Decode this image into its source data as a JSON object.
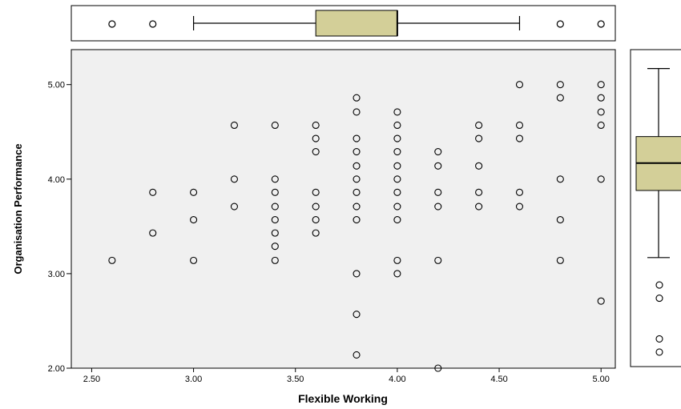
{
  "chart_data": {
    "type": "scatter",
    "title": "",
    "xlabel": "Flexible Working",
    "ylabel": "Organisation Performance",
    "xlim": [
      2.4,
      5.07
    ],
    "ylim": [
      2.0,
      5.37
    ],
    "x_ticks": [
      "2.50",
      "3.00",
      "3.50",
      "4.00",
      "4.50",
      "5.00"
    ],
    "y_ticks": [
      "2.00",
      "3.00",
      "4.00",
      "5.00"
    ],
    "grid": false,
    "plot_background": "#f0f0f0",
    "box_fill": "#d3cf98",
    "points": [
      [
        2.6,
        3.14
      ],
      [
        2.8,
        3.86
      ],
      [
        2.8,
        3.43
      ],
      [
        3.0,
        3.86
      ],
      [
        3.0,
        3.57
      ],
      [
        3.0,
        3.14
      ],
      [
        3.2,
        4.57
      ],
      [
        3.2,
        4.0
      ],
      [
        3.2,
        3.71
      ],
      [
        3.4,
        4.57
      ],
      [
        3.4,
        4.0
      ],
      [
        3.4,
        3.86
      ],
      [
        3.4,
        3.71
      ],
      [
        3.4,
        3.57
      ],
      [
        3.4,
        3.43
      ],
      [
        3.4,
        3.29
      ],
      [
        3.4,
        3.14
      ],
      [
        3.6,
        4.57
      ],
      [
        3.6,
        4.43
      ],
      [
        3.6,
        4.29
      ],
      [
        3.6,
        3.86
      ],
      [
        3.6,
        3.71
      ],
      [
        3.6,
        3.57
      ],
      [
        3.6,
        3.43
      ],
      [
        3.8,
        4.86
      ],
      [
        3.8,
        4.71
      ],
      [
        3.8,
        4.43
      ],
      [
        3.8,
        4.29
      ],
      [
        3.8,
        4.14
      ],
      [
        3.8,
        4.0
      ],
      [
        3.8,
        3.86
      ],
      [
        3.8,
        3.71
      ],
      [
        3.8,
        3.57
      ],
      [
        3.8,
        3.0
      ],
      [
        3.8,
        2.57
      ],
      [
        3.8,
        2.14
      ],
      [
        4.0,
        4.71
      ],
      [
        4.0,
        4.57
      ],
      [
        4.0,
        4.43
      ],
      [
        4.0,
        4.29
      ],
      [
        4.0,
        4.14
      ],
      [
        4.0,
        4.0
      ],
      [
        4.0,
        3.86
      ],
      [
        4.0,
        3.71
      ],
      [
        4.0,
        3.57
      ],
      [
        4.0,
        3.14
      ],
      [
        4.0,
        3.0
      ],
      [
        4.2,
        4.29
      ],
      [
        4.2,
        4.14
      ],
      [
        4.2,
        3.86
      ],
      [
        4.2,
        3.71
      ],
      [
        4.2,
        3.14
      ],
      [
        4.2,
        2.0
      ],
      [
        4.4,
        4.57
      ],
      [
        4.4,
        4.43
      ],
      [
        4.4,
        4.14
      ],
      [
        4.4,
        3.86
      ],
      [
        4.4,
        3.71
      ],
      [
        4.6,
        5.0
      ],
      [
        4.6,
        4.57
      ],
      [
        4.6,
        4.43
      ],
      [
        4.6,
        3.86
      ],
      [
        4.6,
        3.71
      ],
      [
        4.8,
        5.0
      ],
      [
        4.8,
        4.86
      ],
      [
        4.8,
        4.0
      ],
      [
        4.8,
        3.57
      ],
      [
        4.8,
        3.14
      ],
      [
        5.0,
        5.0
      ],
      [
        5.0,
        4.86
      ],
      [
        5.0,
        4.71
      ],
      [
        5.0,
        4.57
      ],
      [
        5.0,
        4.0
      ],
      [
        5.0,
        2.71
      ]
    ],
    "x_boxplot": {
      "whisker_low": 3.0,
      "q1": 3.6,
      "median": 4.0,
      "q3": 4.0,
      "whisker_high": 4.6,
      "outliers": [
        2.6,
        2.8,
        4.8,
        5.0
      ]
    },
    "y_boxplot": {
      "whisker_low": 3.17,
      "q1": 3.88,
      "median": 4.17,
      "q3": 4.45,
      "whisker_high": 5.17,
      "outliers": [
        2.88,
        2.74,
        2.31,
        2.17
      ]
    }
  }
}
